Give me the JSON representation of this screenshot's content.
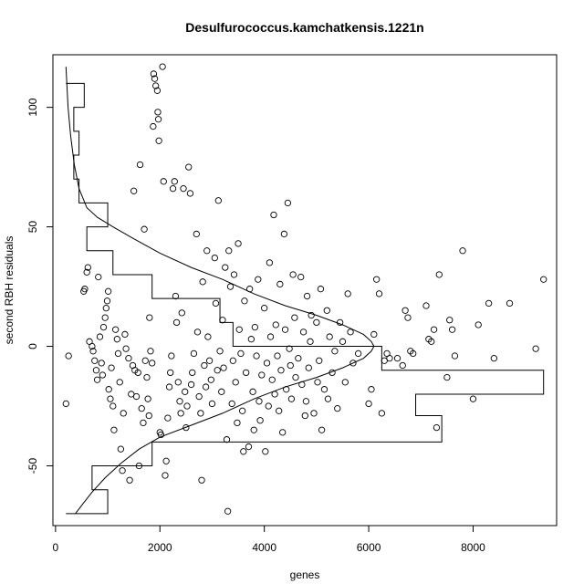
{
  "chart_data": {
    "type": "scatter",
    "title": "Desulfurococcus.kamchatkensis.1221n",
    "xlabel": "genes",
    "ylabel": "second RBH residuals",
    "xlim": [
      -50,
      9600
    ],
    "ylim": [
      -75,
      122
    ],
    "x_ticks": [
      0,
      2000,
      4000,
      6000,
      8000
    ],
    "x_tick_labels": [
      "0",
      "2000",
      "4000",
      "6000",
      "8000"
    ],
    "y_ticks": [
      -50,
      0,
      50,
      100
    ],
    "y_tick_labels": [
      "-50",
      "0",
      "50",
      "100"
    ],
    "grid": false,
    "legend": "none",
    "colors": {
      "points": "#000000",
      "lines": "#000000",
      "background": "#ffffff"
    },
    "series": [
      {
        "values": [
          [
            200,
            -24
          ],
          [
            250,
            -4
          ],
          [
            540,
            23
          ],
          [
            560,
            24
          ],
          [
            600,
            31
          ],
          [
            620,
            33
          ],
          [
            650,
            2
          ],
          [
            700,
            0
          ],
          [
            720,
            -2
          ],
          [
            750,
            -6
          ],
          [
            780,
            -10
          ],
          [
            800,
            -14
          ],
          [
            820,
            29
          ],
          [
            850,
            4
          ],
          [
            880,
            -7
          ],
          [
            900,
            -12
          ],
          [
            920,
            8
          ],
          [
            950,
            12
          ],
          [
            970,
            16
          ],
          [
            990,
            19
          ],
          [
            1010,
            23
          ],
          [
            1020,
            -18
          ],
          [
            1050,
            -22
          ],
          [
            1070,
            -9
          ],
          [
            1100,
            -25
          ],
          [
            1120,
            -35
          ],
          [
            1150,
            7
          ],
          [
            1180,
            3
          ],
          [
            1200,
            -3
          ],
          [
            1230,
            -15
          ],
          [
            1250,
            -43
          ],
          [
            1280,
            -52
          ],
          [
            1300,
            -28
          ],
          [
            1330,
            5
          ],
          [
            1350,
            -1
          ],
          [
            1400,
            -5
          ],
          [
            1420,
            -56
          ],
          [
            1450,
            -20
          ],
          [
            1480,
            -8
          ],
          [
            1500,
            65
          ],
          [
            1520,
            -10
          ],
          [
            1550,
            -21
          ],
          [
            1580,
            -11
          ],
          [
            1600,
            -50
          ],
          [
            1620,
            76
          ],
          [
            1650,
            -26
          ],
          [
            1680,
            -32
          ],
          [
            1700,
            49
          ],
          [
            1720,
            -6
          ],
          [
            1750,
            -13
          ],
          [
            1770,
            -22
          ],
          [
            1790,
            -29
          ],
          [
            1800,
            12
          ],
          [
            1820,
            -2
          ],
          [
            1850,
            -7
          ],
          [
            1870,
            92
          ],
          [
            1880,
            114
          ],
          [
            1900,
            112
          ],
          [
            1920,
            109
          ],
          [
            1950,
            107
          ],
          [
            1960,
            98
          ],
          [
            1970,
            95
          ],
          [
            1980,
            86
          ],
          [
            2000,
            -36
          ],
          [
            2020,
            -37
          ],
          [
            2050,
            117
          ],
          [
            2070,
            69
          ],
          [
            2100,
            -54
          ],
          [
            2120,
            -48
          ],
          [
            2150,
            -30
          ],
          [
            2180,
            -17
          ],
          [
            2200,
            -11
          ],
          [
            2220,
            -4
          ],
          [
            2250,
            66
          ],
          [
            2280,
            69
          ],
          [
            2300,
            21
          ],
          [
            2320,
            10
          ],
          [
            2350,
            -15
          ],
          [
            2380,
            -23
          ],
          [
            2400,
            -28
          ],
          [
            2420,
            14
          ],
          [
            2450,
            66
          ],
          [
            2480,
            -19
          ],
          [
            2500,
            -34
          ],
          [
            2520,
            -25
          ],
          [
            2550,
            75
          ],
          [
            2580,
            64
          ],
          [
            2600,
            -16
          ],
          [
            2620,
            -11
          ],
          [
            2650,
            -3
          ],
          [
            2700,
            47
          ],
          [
            2720,
            6
          ],
          [
            2750,
            -21
          ],
          [
            2780,
            -28
          ],
          [
            2800,
            -56
          ],
          [
            2820,
            27
          ],
          [
            2850,
            -8
          ],
          [
            2880,
            -17
          ],
          [
            2900,
            40
          ],
          [
            2920,
            4
          ],
          [
            2950,
            -6
          ],
          [
            2980,
            -14
          ],
          [
            3000,
            -24
          ],
          [
            3050,
            37
          ],
          [
            3070,
            18
          ],
          [
            3100,
            -10
          ],
          [
            3120,
            61
          ],
          [
            3150,
            -2
          ],
          [
            3180,
            -19
          ],
          [
            3200,
            11
          ],
          [
            3220,
            -9
          ],
          [
            3250,
            33
          ],
          [
            3280,
            -39
          ],
          [
            3300,
            -69
          ],
          [
            3320,
            40
          ],
          [
            3350,
            25
          ],
          [
            3380,
            -24
          ],
          [
            3400,
            -6
          ],
          [
            3420,
            30
          ],
          [
            3450,
            -15
          ],
          [
            3480,
            -32
          ],
          [
            3500,
            43
          ],
          [
            3520,
            7
          ],
          [
            3550,
            -3
          ],
          [
            3580,
            -27
          ],
          [
            3600,
            -44
          ],
          [
            3620,
            19
          ],
          [
            3650,
            -11
          ],
          [
            3700,
            -42
          ],
          [
            3720,
            24
          ],
          [
            3750,
            3
          ],
          [
            3780,
            -19
          ],
          [
            3800,
            -35
          ],
          [
            3820,
            8
          ],
          [
            3850,
            -4
          ],
          [
            3880,
            28
          ],
          [
            3900,
            -23
          ],
          [
            3920,
            -31
          ],
          [
            3950,
            -12
          ],
          [
            4000,
            16
          ],
          [
            4020,
            -44
          ],
          [
            4050,
            -7
          ],
          [
            4080,
            -25
          ],
          [
            4100,
            35
          ],
          [
            4120,
            4
          ],
          [
            4150,
            -14
          ],
          [
            4180,
            55
          ],
          [
            4200,
            -20
          ],
          [
            4220,
            9
          ],
          [
            4250,
            -4
          ],
          [
            4280,
            -27
          ],
          [
            4300,
            26
          ],
          [
            4320,
            -10
          ],
          [
            4350,
            -36
          ],
          [
            4380,
            47
          ],
          [
            4400,
            7
          ],
          [
            4420,
            -18
          ],
          [
            4450,
            60
          ],
          [
            4480,
            -1
          ],
          [
            4500,
            -8
          ],
          [
            4520,
            -22
          ],
          [
            4550,
            30
          ],
          [
            4580,
            12
          ],
          [
            4600,
            -13
          ],
          [
            4650,
            -5
          ],
          [
            4700,
            29
          ],
          [
            4720,
            -16
          ],
          [
            4750,
            6
          ],
          [
            4780,
            -29
          ],
          [
            4800,
            -23
          ],
          [
            4820,
            21
          ],
          [
            4850,
            -9
          ],
          [
            4880,
            2
          ],
          [
            4900,
            13
          ],
          [
            4950,
            -28
          ],
          [
            5000,
            10
          ],
          [
            5020,
            -15
          ],
          [
            5050,
            -6
          ],
          [
            5080,
            24
          ],
          [
            5100,
            -35
          ],
          [
            5150,
            -18
          ],
          [
            5200,
            15
          ],
          [
            5220,
            -22
          ],
          [
            5250,
            4
          ],
          [
            5300,
            -11
          ],
          [
            5350,
            -2
          ],
          [
            5400,
            -26
          ],
          [
            5450,
            10
          ],
          [
            5500,
            2
          ],
          [
            5550,
            -15
          ],
          [
            5600,
            22
          ],
          [
            5650,
            6
          ],
          [
            5700,
            -7
          ],
          [
            5800,
            -3
          ],
          [
            6000,
            -24
          ],
          [
            6050,
            -18
          ],
          [
            6100,
            5
          ],
          [
            6150,
            28
          ],
          [
            6200,
            22
          ],
          [
            6250,
            -28
          ],
          [
            6300,
            -6
          ],
          [
            6350,
            -3
          ],
          [
            6400,
            -5
          ],
          [
            6550,
            -5
          ],
          [
            6650,
            -8
          ],
          [
            6700,
            15
          ],
          [
            6750,
            12
          ],
          [
            6800,
            -2
          ],
          [
            6850,
            -3
          ],
          [
            7100,
            17
          ],
          [
            7150,
            3
          ],
          [
            7200,
            2
          ],
          [
            7250,
            7
          ],
          [
            7300,
            -34
          ],
          [
            7350,
            30
          ],
          [
            7500,
            -13
          ],
          [
            7550,
            11
          ],
          [
            7600,
            7
          ],
          [
            7650,
            -4
          ],
          [
            7800,
            40
          ],
          [
            8000,
            -22
          ],
          [
            8100,
            9
          ],
          [
            8300,
            18
          ],
          [
            8400,
            -5
          ],
          [
            8700,
            18
          ],
          [
            9200,
            -1
          ],
          [
            9350,
            28
          ]
        ]
      }
    ],
    "curve": [
      [
        200,
        117
      ],
      [
        240,
        100
      ],
      [
        290,
        88
      ],
      [
        360,
        76
      ],
      [
        450,
        66
      ],
      [
        600,
        58
      ],
      [
        800,
        54
      ],
      [
        1100,
        50
      ],
      [
        1500,
        45
      ],
      [
        2000,
        39
      ],
      [
        2600,
        33
      ],
      [
        3200,
        28
      ],
      [
        3800,
        22
      ],
      [
        4400,
        17
      ],
      [
        5000,
        13
      ],
      [
        5500,
        9
      ],
      [
        5900,
        5
      ],
      [
        6050,
        2
      ],
      [
        6100,
        0
      ],
      [
        6050,
        -2
      ],
      [
        5900,
        -5
      ],
      [
        5500,
        -9
      ],
      [
        5000,
        -13
      ],
      [
        4400,
        -17
      ],
      [
        3800,
        -22
      ],
      [
        3200,
        -28
      ],
      [
        2600,
        -33
      ],
      [
        2000,
        -38
      ],
      [
        1600,
        -43
      ],
      [
        1250,
        -49
      ],
      [
        950,
        -55
      ],
      [
        700,
        -61
      ],
      [
        520,
        -66
      ],
      [
        380,
        -70
      ]
    ],
    "histogram": [
      [
        200,
        -70
      ],
      [
        1000,
        -70
      ],
      [
        1000,
        -60
      ],
      [
        700,
        -60
      ],
      [
        700,
        -50
      ],
      [
        1850,
        -50
      ],
      [
        1850,
        -40
      ],
      [
        7400,
        -40
      ],
      [
        7400,
        -29
      ],
      [
        6900,
        -29
      ],
      [
        6900,
        -20
      ],
      [
        9350,
        -20
      ],
      [
        9350,
        -10
      ],
      [
        6250,
        -10
      ],
      [
        6250,
        0
      ],
      [
        3400,
        0
      ],
      [
        3400,
        10
      ],
      [
        3150,
        10
      ],
      [
        3150,
        20
      ],
      [
        1850,
        20
      ],
      [
        1850,
        30
      ],
      [
        1100,
        30
      ],
      [
        1100,
        40
      ],
      [
        600,
        40
      ],
      [
        600,
        50
      ],
      [
        1000,
        50
      ],
      [
        1000,
        60
      ],
      [
        450,
        60
      ],
      [
        450,
        70
      ],
      [
        350,
        70
      ],
      [
        350,
        80
      ],
      [
        450,
        80
      ],
      [
        450,
        90
      ],
      [
        350,
        90
      ],
      [
        350,
        100
      ],
      [
        550,
        100
      ],
      [
        550,
        110
      ],
      [
        200,
        110
      ]
    ]
  }
}
